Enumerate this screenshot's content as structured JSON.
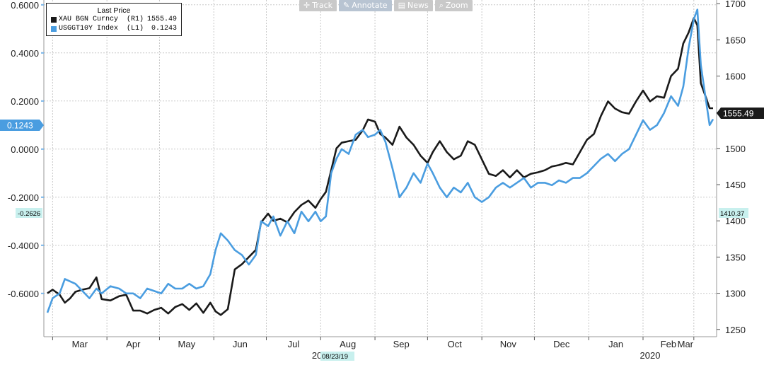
{
  "toolbar": {
    "track_label": "Track",
    "annotate_label": "Annotate",
    "news_label": "News",
    "zoom_label": "Zoom"
  },
  "legend": {
    "title": "Last Price",
    "series": [
      {
        "name": "XAU BGN Curncy  (R1)",
        "value": "1555.49",
        "color": "#1a1a1a"
      },
      {
        "name": "USGGT10Y Index  (L1)",
        "value": "0.1243",
        "color": "#4a9de0"
      }
    ]
  },
  "markers": {
    "left_current": "0.1243",
    "left_low": "-0.2626",
    "right_current": "1555.49",
    "right_low": "1410.37",
    "x_date": "08/23/19"
  },
  "chart_data": {
    "type": "line",
    "title": "",
    "x": [
      "2019-03",
      "2019-04",
      "2019-05",
      "2019-06",
      "2019-07",
      "2019-08",
      "2019-09",
      "2019-10",
      "2019-11",
      "2019-12",
      "2020-01",
      "2020-02",
      "2020-03"
    ],
    "x_tick_labels": [
      "Mar",
      "Apr",
      "May",
      "Jun",
      "Jul",
      "Aug",
      "Sep",
      "Oct",
      "Nov",
      "Dec",
      "Jan",
      "Feb",
      "Mar"
    ],
    "year_labels": [
      "2019",
      "2020"
    ],
    "left_axis": {
      "ylim": [
        -0.78,
        0.62
      ],
      "ticks": [
        "0.6000",
        "0.4000",
        "0.2000",
        "0.0000",
        "-0.2000",
        "-0.4000",
        "-0.6000"
      ]
    },
    "right_axis": {
      "ylim": [
        1240,
        1705
      ],
      "ticks": [
        "1700",
        "1650",
        "1600",
        "1550",
        "1500",
        "1450",
        "1400",
        "1350",
        "1300",
        "1250"
      ]
    },
    "grid": true,
    "series": [
      {
        "name": "XAU BGN Curncy",
        "axis": "right",
        "color": "#1a1a1a",
        "x": [
          "2019-02-26",
          "2019-03-01",
          "2019-03-05",
          "2019-03-08",
          "2019-03-11",
          "2019-03-14",
          "2019-03-18",
          "2019-03-22",
          "2019-03-26",
          "2019-03-29",
          "2019-04-03",
          "2019-04-08",
          "2019-04-12",
          "2019-04-16",
          "2019-04-20",
          "2019-04-24",
          "2019-04-28",
          "2019-05-02",
          "2019-05-06",
          "2019-05-10",
          "2019-05-14",
          "2019-05-18",
          "2019-05-22",
          "2019-05-26",
          "2019-05-30",
          "2019-06-02",
          "2019-06-05",
          "2019-06-09",
          "2019-06-13",
          "2019-06-17",
          "2019-06-21",
          "2019-06-25",
          "2019-06-28",
          "2019-07-02",
          "2019-07-05",
          "2019-07-09",
          "2019-07-13",
          "2019-07-17",
          "2019-07-21",
          "2019-07-25",
          "2019-07-29",
          "2019-08-01",
          "2019-08-04",
          "2019-08-07",
          "2019-08-10",
          "2019-08-13",
          "2019-08-17",
          "2019-08-21",
          "2019-08-25",
          "2019-08-28",
          "2019-09-01",
          "2019-09-04",
          "2019-09-07",
          "2019-09-11",
          "2019-09-15",
          "2019-09-19",
          "2019-09-23",
          "2019-09-27",
          "2019-10-01",
          "2019-10-04",
          "2019-10-08",
          "2019-10-12",
          "2019-10-16",
          "2019-10-20",
          "2019-10-24",
          "2019-10-28",
          "2019-11-01",
          "2019-11-05",
          "2019-11-09",
          "2019-11-13",
          "2019-11-17",
          "2019-11-21",
          "2019-11-25",
          "2019-11-29",
          "2019-12-03",
          "2019-12-07",
          "2019-12-11",
          "2019-12-15",
          "2019-12-19",
          "2019-12-23",
          "2019-12-27",
          "2019-12-31",
          "2020-01-04",
          "2020-01-08",
          "2020-01-12",
          "2020-01-16",
          "2020-01-20",
          "2020-01-24",
          "2020-01-28",
          "2020-02-01",
          "2020-02-05",
          "2020-02-09",
          "2020-02-13",
          "2020-02-17",
          "2020-02-21",
          "2020-02-24",
          "2020-02-27",
          "2020-03-01",
          "2020-03-03",
          "2020-03-05",
          "2020-03-08",
          "2020-03-10",
          "2020-03-12"
        ],
        "y": [
          1300,
          1305,
          1298,
          1287,
          1293,
          1302,
          1305,
          1307,
          1322,
          1292,
          1290,
          1296,
          1298,
          1276,
          1276,
          1272,
          1277,
          1280,
          1272,
          1281,
          1285,
          1277,
          1286,
          1273,
          1287,
          1275,
          1270,
          1278,
          1333,
          1340,
          1350,
          1360,
          1398,
          1410,
          1400,
          1403,
          1398,
          1412,
          1422,
          1428,
          1418,
          1430,
          1440,
          1470,
          1500,
          1508,
          1510,
          1512,
          1525,
          1540,
          1537,
          1520,
          1515,
          1505,
          1530,
          1515,
          1505,
          1490,
          1480,
          1495,
          1510,
          1495,
          1485,
          1490,
          1510,
          1505,
          1485,
          1465,
          1462,
          1470,
          1460,
          1470,
          1460,
          1465,
          1467,
          1470,
          1475,
          1477,
          1480,
          1478,
          1495,
          1512,
          1520,
          1545,
          1565,
          1555,
          1550,
          1548,
          1565,
          1580,
          1565,
          1572,
          1570,
          1600,
          1610,
          1645,
          1660,
          1680,
          1670,
          1590,
          1570,
          1555.49,
          1555.49
        ],
        "note": "y values approximate; the last three points close at the printed last price"
      },
      {
        "name": "USGGT10Y Index",
        "axis": "left",
        "color": "#4a9de0",
        "x": [
          "2019-02-26",
          "2019-03-01",
          "2019-03-05",
          "2019-03-08",
          "2019-03-11",
          "2019-03-14",
          "2019-03-18",
          "2019-03-22",
          "2019-03-26",
          "2019-03-29",
          "2019-04-03",
          "2019-04-08",
          "2019-04-12",
          "2019-04-16",
          "2019-04-20",
          "2019-04-24",
          "2019-04-28",
          "2019-05-02",
          "2019-05-06",
          "2019-05-10",
          "2019-05-14",
          "2019-05-18",
          "2019-05-22",
          "2019-05-26",
          "2019-05-30",
          "2019-06-02",
          "2019-06-05",
          "2019-06-09",
          "2019-06-13",
          "2019-06-17",
          "2019-06-21",
          "2019-06-25",
          "2019-06-28",
          "2019-07-02",
          "2019-07-05",
          "2019-07-09",
          "2019-07-13",
          "2019-07-17",
          "2019-07-21",
          "2019-07-25",
          "2019-07-29",
          "2019-08-01",
          "2019-08-04",
          "2019-08-07",
          "2019-08-10",
          "2019-08-13",
          "2019-08-17",
          "2019-08-21",
          "2019-08-25",
          "2019-08-28",
          "2019-09-01",
          "2019-09-04",
          "2019-09-07",
          "2019-09-11",
          "2019-09-15",
          "2019-09-19",
          "2019-09-23",
          "2019-09-27",
          "2019-10-01",
          "2019-10-04",
          "2019-10-08",
          "2019-10-12",
          "2019-10-16",
          "2019-10-20",
          "2019-10-24",
          "2019-10-28",
          "2019-11-01",
          "2019-11-05",
          "2019-11-09",
          "2019-11-13",
          "2019-11-17",
          "2019-11-21",
          "2019-11-25",
          "2019-11-29",
          "2019-12-03",
          "2019-12-07",
          "2019-12-11",
          "2019-12-15",
          "2019-12-19",
          "2019-12-23",
          "2019-12-27",
          "2019-12-31",
          "2020-01-04",
          "2020-01-08",
          "2020-01-12",
          "2020-01-16",
          "2020-01-20",
          "2020-01-24",
          "2020-01-28",
          "2020-02-01",
          "2020-02-05",
          "2020-02-09",
          "2020-02-13",
          "2020-02-17",
          "2020-02-21",
          "2020-02-24",
          "2020-02-27",
          "2020-03-01",
          "2020-03-03",
          "2020-03-05",
          "2020-03-08",
          "2020-03-10",
          "2020-03-12"
        ],
        "y": [
          -0.68,
          -0.62,
          -0.6,
          -0.54,
          -0.55,
          -0.56,
          -0.59,
          -0.62,
          -0.58,
          -0.6,
          -0.57,
          -0.58,
          -0.6,
          -0.6,
          -0.62,
          -0.58,
          -0.59,
          -0.6,
          -0.56,
          -0.58,
          -0.58,
          -0.56,
          -0.58,
          -0.57,
          -0.52,
          -0.42,
          -0.35,
          -0.38,
          -0.42,
          -0.44,
          -0.48,
          -0.44,
          -0.3,
          -0.32,
          -0.28,
          -0.36,
          -0.3,
          -0.35,
          -0.26,
          -0.3,
          -0.26,
          -0.3,
          -0.28,
          -0.1,
          -0.04,
          0.0,
          -0.02,
          0.06,
          0.08,
          0.05,
          0.06,
          0.08,
          0.03,
          -0.08,
          -0.2,
          -0.16,
          -0.1,
          -0.14,
          -0.06,
          -0.1,
          -0.16,
          -0.2,
          -0.16,
          -0.18,
          -0.14,
          -0.2,
          -0.22,
          -0.2,
          -0.16,
          -0.14,
          -0.16,
          -0.14,
          -0.12,
          -0.16,
          -0.14,
          -0.14,
          -0.15,
          -0.13,
          -0.14,
          -0.12,
          -0.12,
          -0.1,
          -0.07,
          -0.04,
          -0.02,
          -0.05,
          -0.02,
          0.0,
          0.06,
          0.12,
          0.08,
          0.1,
          0.15,
          0.22,
          0.18,
          0.26,
          0.42,
          0.54,
          0.58,
          0.35,
          0.2,
          0.1,
          0.1243
        ]
      }
    ]
  }
}
